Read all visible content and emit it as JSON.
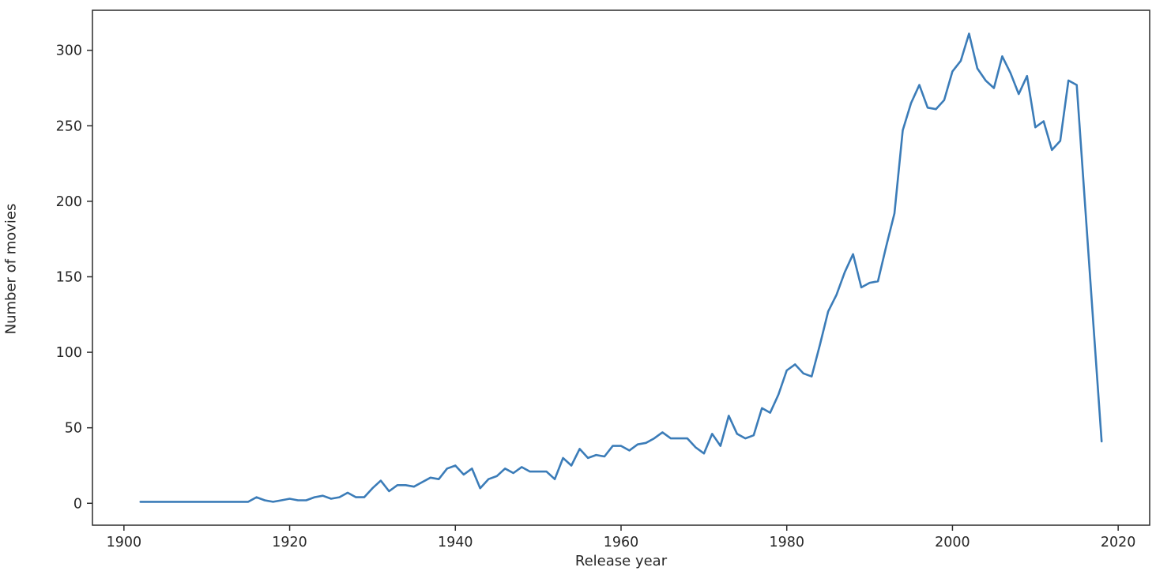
{
  "figure": {
    "background": "#ffffff",
    "spine_color": "#2b2b2b",
    "text_color": "#262626"
  },
  "chart_data": {
    "type": "line",
    "title": "",
    "xlabel": "Release year",
    "ylabel": "Number of movies",
    "line_color": "#3b7cb8",
    "line_width": 2.6,
    "grid": false,
    "legend_position": "none",
    "xlim": [
      1896.2,
      2023.8
    ],
    "ylim": [
      -14.5,
      326.5
    ],
    "xticks": [
      1900,
      1920,
      1940,
      1960,
      1980,
      2000,
      2020
    ],
    "yticks": [
      0,
      50,
      100,
      150,
      200,
      250,
      300
    ],
    "x": [
      1902,
      1903,
      1904,
      1905,
      1906,
      1907,
      1908,
      1909,
      1910,
      1911,
      1912,
      1913,
      1914,
      1915,
      1916,
      1917,
      1918,
      1919,
      1920,
      1921,
      1922,
      1923,
      1924,
      1925,
      1926,
      1927,
      1928,
      1929,
      1930,
      1931,
      1932,
      1933,
      1934,
      1935,
      1936,
      1937,
      1938,
      1939,
      1940,
      1941,
      1942,
      1943,
      1944,
      1945,
      1946,
      1947,
      1948,
      1949,
      1950,
      1951,
      1952,
      1953,
      1954,
      1955,
      1956,
      1957,
      1958,
      1959,
      1960,
      1961,
      1962,
      1963,
      1964,
      1965,
      1966,
      1967,
      1968,
      1969,
      1970,
      1971,
      1972,
      1973,
      1974,
      1975,
      1976,
      1977,
      1978,
      1979,
      1980,
      1981,
      1982,
      1983,
      1984,
      1985,
      1986,
      1987,
      1988,
      1989,
      1990,
      1991,
      1992,
      1993,
      1994,
      1995,
      1996,
      1997,
      1998,
      1999,
      2000,
      2001,
      2002,
      2003,
      2004,
      2005,
      2006,
      2007,
      2008,
      2009,
      2010,
      2011,
      2012,
      2013,
      2014,
      2015,
      2016,
      2017,
      2018
    ],
    "y": [
      1,
      1,
      1,
      1,
      1,
      1,
      1,
      1,
      1,
      1,
      1,
      1,
      1,
      1,
      4,
      2,
      1,
      2,
      3,
      2,
      2,
      4,
      5,
      3,
      4,
      7,
      4,
      4,
      10,
      15,
      8,
      12,
      12,
      11,
      14,
      17,
      16,
      23,
      25,
      19,
      23,
      10,
      16,
      18,
      23,
      20,
      24,
      21,
      21,
      21,
      16,
      30,
      25,
      36,
      30,
      32,
      31,
      38,
      38,
      35,
      39,
      40,
      43,
      47,
      43,
      43,
      43,
      37,
      33,
      46,
      38,
      58,
      46,
      43,
      45,
      63,
      60,
      72,
      88,
      92,
      86,
      84,
      105,
      127,
      138,
      153,
      165,
      143,
      146,
      147,
      170,
      192,
      247,
      265,
      277,
      262,
      261,
      267,
      286,
      293,
      311,
      288,
      280,
      275,
      296,
      285,
      271,
      283,
      249,
      253,
      234,
      240,
      280,
      277,
      198,
      119,
      41
    ]
  }
}
